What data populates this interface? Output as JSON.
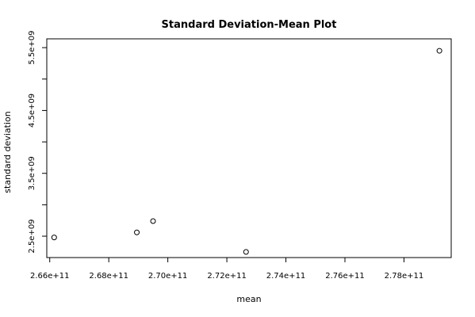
{
  "chart_data": {
    "type": "scatter",
    "title": "Standard Deviation-Mean Plot",
    "xlabel": "mean",
    "ylabel": "standard deviation",
    "xlim": [
      265900000000,
      279600000000
    ],
    "ylim": [
      2160000000,
      5640000000
    ],
    "x_ticks": [
      266000000000,
      268000000000,
      270000000000,
      272000000000,
      274000000000,
      276000000000,
      278000000000
    ],
    "x_tick_labels": [
      "2.66e+11",
      "2.68e+11",
      "2.70e+11",
      "2.72e+11",
      "2.74e+11",
      "2.76e+11",
      "2.78e+11"
    ],
    "y_ticks": [
      2500000000,
      3000000000,
      3500000000,
      4000000000,
      4500000000,
      5000000000,
      5500000000
    ],
    "y_tick_labels": [
      "2.5e+09",
      "",
      "3.5e+09",
      "",
      "4.5e+09",
      "",
      "5.5e+09"
    ],
    "points": [
      {
        "x": 266150000000,
        "y": 2480000000
      },
      {
        "x": 268950000000,
        "y": 2560000000
      },
      {
        "x": 269500000000,
        "y": 2740000000
      },
      {
        "x": 272650000000,
        "y": 2250000000
      },
      {
        "x": 279200000000,
        "y": 5450000000
      }
    ],
    "marker": "open-circle",
    "grid": false,
    "legend": "none",
    "colors": {
      "foreground": "#000000",
      "background": "#ffffff"
    }
  }
}
